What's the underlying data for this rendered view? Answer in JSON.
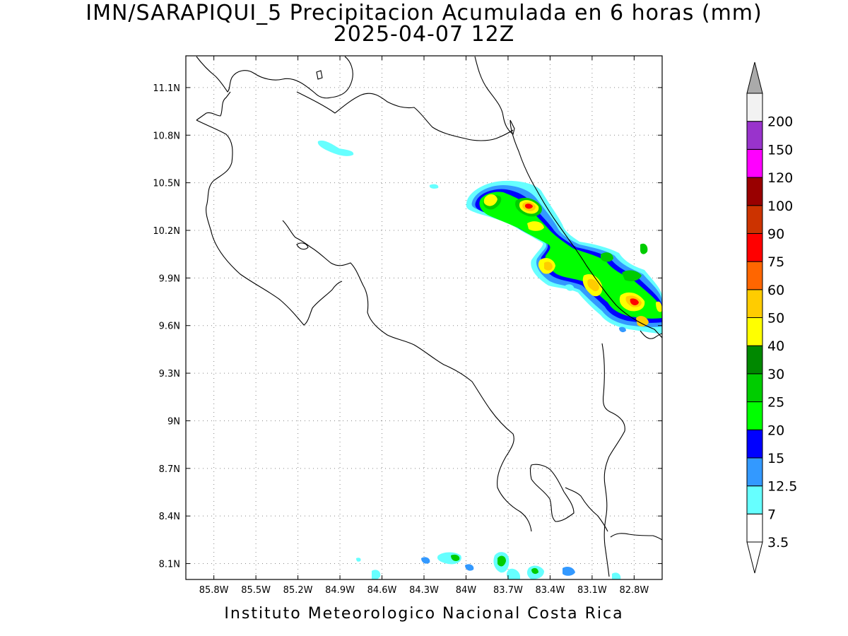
{
  "title_line1": "IMN/SARAPIQUI_5 Precipitacion Acumulada en 6 horas (mm)",
  "title_line2": "2025-04-07 12Z",
  "footer": "Instituto Meteorologico Nacional Costa Rica",
  "map": {
    "lon_range": [
      -86.0,
      -82.6
    ],
    "lat_range": [
      8.0,
      11.3
    ],
    "lon_ticks": [
      "85.8W",
      "85.5W",
      "85.2W",
      "84.9W",
      "84.6W",
      "84.3W",
      "84W",
      "83.7W",
      "83.4W",
      "83.1W",
      "82.8W"
    ],
    "lat_ticks": [
      "8.1N",
      "8.4N",
      "8.7N",
      "9N",
      "9.3N",
      "9.6N",
      "9.9N",
      "10.2N",
      "10.5N",
      "10.8N",
      "11.1N"
    ],
    "grid": "dotted"
  },
  "colorbar": {
    "labels": [
      "3.5",
      "7",
      "12.5",
      "15",
      "20",
      "25",
      "30",
      "40",
      "50",
      "60",
      "75",
      "90",
      "100",
      "120",
      "150",
      "200"
    ],
    "colors": [
      "#ffffff",
      "#66ffff",
      "#3399ff",
      "#0000ff",
      "#00ff00",
      "#00cc00",
      "#008800",
      "#ffff00",
      "#ffcc00",
      "#ff6600",
      "#ff0000",
      "#cc3300",
      "#990000",
      "#ff00ff",
      "#9933cc",
      "#f2f2f2"
    ],
    "max_arrow_color": "#aaaaaa",
    "min_arrow_color": "#ffffff"
  }
}
